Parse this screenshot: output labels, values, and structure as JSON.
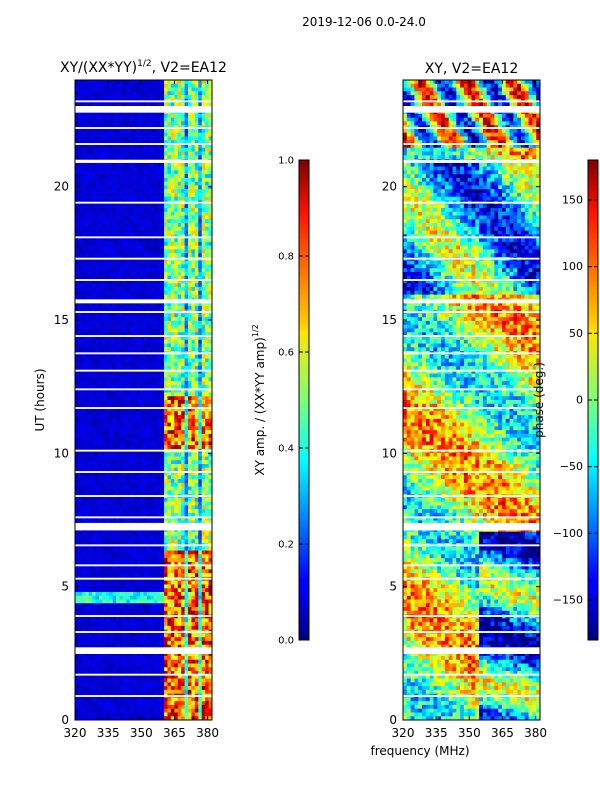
{
  "figure": {
    "suptitle": "2019-12-06 0.0-24.0"
  },
  "chart_data": [
    {
      "type": "heatmap",
      "title": "XY/(XX*YY)",
      "title_superscript": "1/2",
      "title_suffix": ", V2=EA12",
      "xlabel": "",
      "ylabel": "UT (hours)",
      "xlim": [
        320,
        382
      ],
      "ylim": [
        0,
        24
      ],
      "xticks": [
        320,
        335,
        350,
        365,
        380
      ],
      "yticks": [
        0,
        5,
        10,
        15,
        20
      ],
      "notes": "Low values (dark blue) below ~360 MHz; bright band ~360-382 MHz, highest (red) near 0-6 h and 10-12 h; many horizontal white gaps"
    },
    {
      "type": "heatmap",
      "title": "XY, V2=EA12",
      "xlabel": "frequency (MHz)",
      "ylabel": "",
      "xlim": [
        320,
        382
      ],
      "ylim": [
        0,
        24
      ],
      "xticks": [
        320,
        335,
        350,
        365,
        380
      ],
      "yticks": [
        0,
        5,
        10,
        15,
        20
      ],
      "notes": "Phase values vary across the full range with noisy structure and horizontal white gaps"
    }
  ],
  "colorbars": [
    {
      "label": "XY amp. / (XX*YY amp)",
      "label_superscript": "1/2",
      "range": [
        0.0,
        1.0
      ],
      "ticks": [
        "0.0",
        "0.2",
        "0.4",
        "0.6",
        "0.8",
        "1.0"
      ],
      "tick_values": [
        0.0,
        0.2,
        0.4,
        0.6,
        0.8,
        1.0
      ]
    },
    {
      "label": "phase (deg.)",
      "range": [
        -180,
        180
      ],
      "ticks": [
        "−150",
        "−100",
        "−50",
        "0",
        "50",
        "100",
        "150"
      ],
      "tick_values": [
        -150,
        -100,
        -50,
        0,
        50,
        100,
        150
      ]
    }
  ],
  "colors": {
    "colormap": "jet",
    "gap": "#ffffff"
  }
}
